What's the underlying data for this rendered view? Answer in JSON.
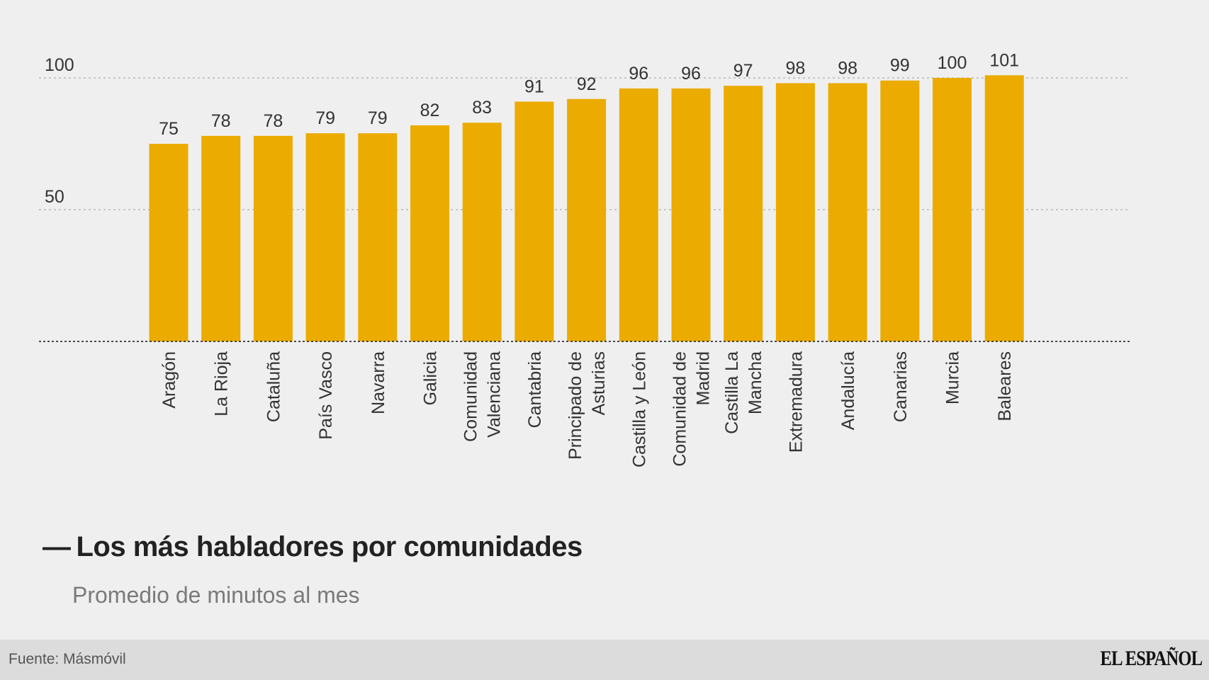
{
  "chart_data": {
    "type": "bar",
    "title": "Los más habladores por comunidades",
    "subtitle": "Promedio de minutos al mes",
    "xlabel": "",
    "ylabel": "",
    "ylim": [
      0,
      101
    ],
    "yticks": [
      50,
      100
    ],
    "grid": true,
    "bar_color": "#ebab00",
    "categories": [
      [
        "Aragón"
      ],
      [
        "La Rioja"
      ],
      [
        "Cataluña"
      ],
      [
        "País Vasco"
      ],
      [
        "Navarra"
      ],
      [
        "Galicia"
      ],
      [
        "Comunidad",
        "Valenciana"
      ],
      [
        "Cantabria"
      ],
      [
        "Principado de",
        "Asturias"
      ],
      [
        "Castilla y León"
      ],
      [
        "Comunidad de",
        "Madrid"
      ],
      [
        "Castilla La",
        "Mancha"
      ],
      [
        "Extremadura"
      ],
      [
        "Andalucía"
      ],
      [
        "Canarias"
      ],
      [
        "Murcia"
      ],
      [
        "Baleares"
      ]
    ],
    "values": [
      75,
      78,
      78,
      79,
      79,
      82,
      83,
      91,
      92,
      96,
      96,
      97,
      98,
      98,
      99,
      100,
      101
    ]
  },
  "header": {
    "dash": "—",
    "title": "Los más habladores por comunidades",
    "subtitle": "Promedio de minutos al mes"
  },
  "footer": {
    "source": "Fuente: Másmóvil",
    "brand": "EL ESPAÑOL"
  }
}
